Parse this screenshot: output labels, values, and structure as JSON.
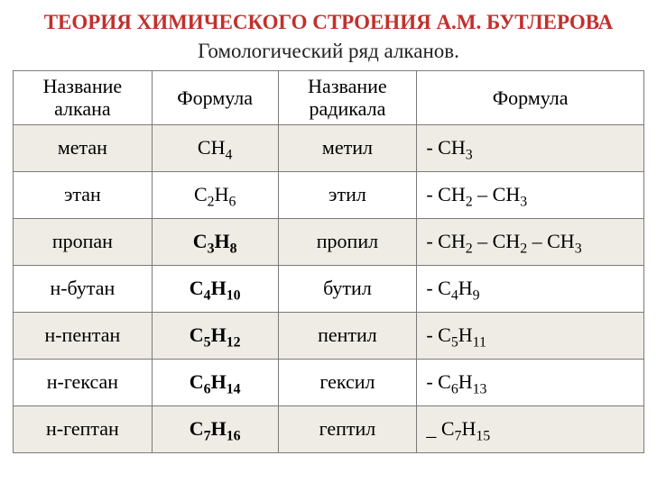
{
  "title": {
    "text": "ТЕОРИЯ ХИМИЧЕСКОГО СТРОЕНИЯ А.М. БУТЛЕРОВА",
    "color": "#c2302c",
    "fontsize": 23
  },
  "subtitle": {
    "text": "Гомологический ряд алканов.",
    "color": "#222222",
    "fontsize": 23
  },
  "table": {
    "border_color": "#7a7a7a",
    "header_bg": "#ffffff",
    "even_row_bg": "#eeece4",
    "odd_row_bg": "#ffffff",
    "cell_fontsize": 22,
    "columns": [
      "Название алкана",
      "Формула",
      "Название радикала",
      "Формула"
    ],
    "rows": [
      {
        "name": "метан",
        "formula_html": "CH<sub>4</sub>",
        "formula_bold": false,
        "radical": "метил",
        "rformula_html": "- CH<sub>3</sub>"
      },
      {
        "name": "этан",
        "formula_html": "C<sub>2</sub>H<sub>6</sub>",
        "formula_bold": false,
        "radical": "этил",
        "rformula_html": "- CH<sub>2</sub> – CH<sub>3</sub>"
      },
      {
        "name": "пропан",
        "formula_html": "C<sub>3</sub>H<sub>8</sub>",
        "formula_bold": true,
        "radical": "пропил",
        "rformula_html": "- CH<sub>2</sub> – CH<sub>2</sub> – CH<sub>3</sub>"
      },
      {
        "name": "н-бутан",
        "formula_html": "C<sub>4</sub>H<sub>10</sub>",
        "formula_bold": true,
        "radical": "бутил",
        "rformula_html": "- C<sub>4</sub>H<sub>9</sub>"
      },
      {
        "name": "н-пентан",
        "formula_html": "C<sub>5</sub>H<sub>12</sub>",
        "formula_bold": true,
        "radical": "пентил",
        "rformula_html": "- C<sub>5</sub>H<sub>11</sub>"
      },
      {
        "name": "н-гексан",
        "formula_html": "C<sub>6</sub>H<sub>14</sub>",
        "formula_bold": true,
        "radical": "гексил",
        "rformula_html": "- C<sub>6</sub>H<sub>13</sub>"
      },
      {
        "name": "н-гептан",
        "formula_html": "C<sub>7</sub>H<sub>16</sub>",
        "formula_bold": true,
        "radical": "гептил",
        "rformula_html": "_  C<sub>7</sub>H<sub>15</sub>"
      }
    ]
  }
}
